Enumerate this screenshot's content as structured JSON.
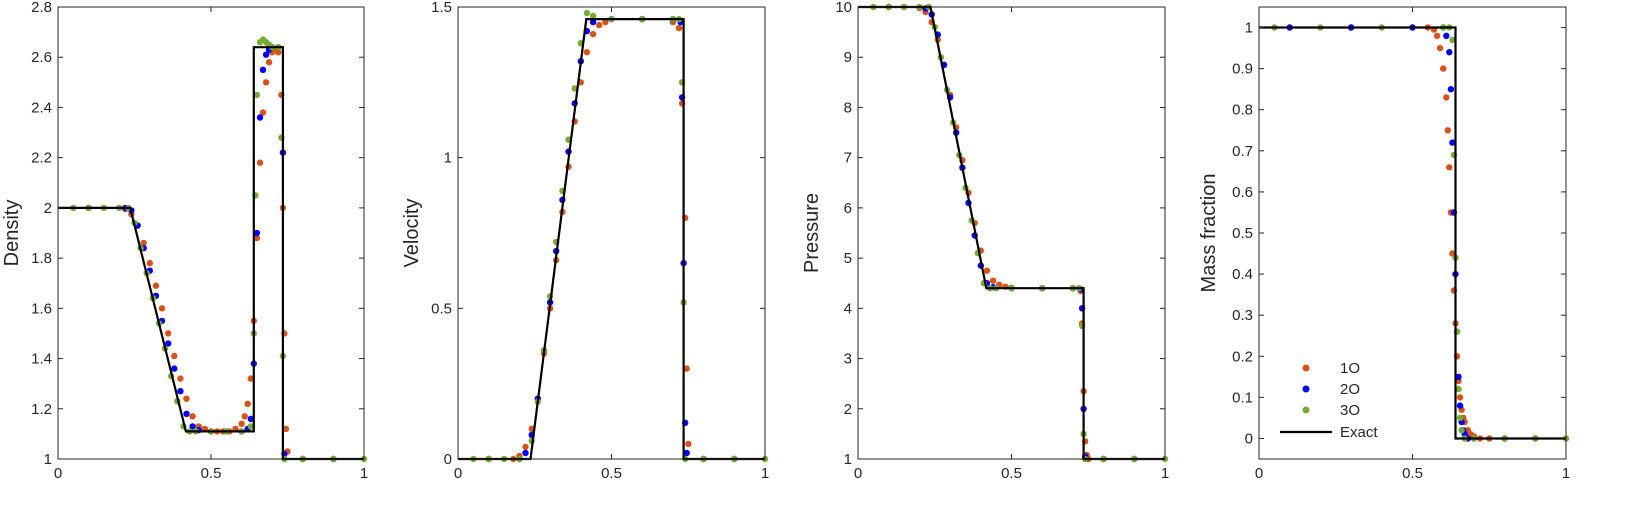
{
  "colors": {
    "1O": "#D95319",
    "2O": "#0000FF",
    "3O": "#77AC30",
    "Exact": "#000000",
    "axis": "#262626"
  },
  "chart_data": [
    {
      "type": "scatter",
      "ylabel": "Density",
      "xlim": [
        0,
        1
      ],
      "ylim": [
        1,
        2.8
      ],
      "xticks": [
        0,
        0.5,
        1
      ],
      "xtick_labels": [
        "0",
        "0.5",
        "1"
      ],
      "yticks": [
        1,
        1.2,
        1.4,
        1.6,
        1.8,
        2,
        2.2,
        2.4,
        2.6,
        2.8
      ],
      "ytick_labels": [
        "1",
        "1.2",
        "1.4",
        "1.6",
        "1.8",
        "2",
        "2.2",
        "2.4",
        "2.6",
        "2.8"
      ],
      "exact": {
        "name": "Exact",
        "x": [
          0,
          0.236,
          0.418,
          0.64,
          0.64,
          0.735,
          0.735,
          1
        ],
        "y": [
          2,
          2,
          1.11,
          1.11,
          2.64,
          2.64,
          1,
          1
        ]
      },
      "series": [
        {
          "name": "1O",
          "x": [
            0.1,
            0.22,
            0.24,
            0.26,
            0.28,
            0.3,
            0.32,
            0.34,
            0.36,
            0.38,
            0.4,
            0.42,
            0.44,
            0.46,
            0.48,
            0.5,
            0.52,
            0.54,
            0.56,
            0.58,
            0.6,
            0.61,
            0.62,
            0.63,
            0.64,
            0.65,
            0.66,
            0.67,
            0.68,
            0.69,
            0.7,
            0.71,
            0.72,
            0.73,
            0.735,
            0.74,
            0.745,
            0.75,
            0.8,
            0.9
          ],
          "y": [
            2,
            1.995,
            1.975,
            1.93,
            1.86,
            1.78,
            1.69,
            1.6,
            1.5,
            1.41,
            1.32,
            1.24,
            1.17,
            1.13,
            1.12,
            1.11,
            1.11,
            1.11,
            1.11,
            1.12,
            1.14,
            1.17,
            1.22,
            1.32,
            1.55,
            1.88,
            2.18,
            2.38,
            2.5,
            2.58,
            2.62,
            2.63,
            2.62,
            2.45,
            2.0,
            1.5,
            1.12,
            1.03,
            1.0,
            1.0
          ]
        },
        {
          "name": "2O",
          "x": [
            0.1,
            0.22,
            0.24,
            0.26,
            0.28,
            0.3,
            0.32,
            0.34,
            0.36,
            0.38,
            0.4,
            0.42,
            0.44,
            0.46,
            0.5,
            0.55,
            0.6,
            0.62,
            0.63,
            0.64,
            0.65,
            0.66,
            0.67,
            0.68,
            0.69,
            0.7,
            0.72,
            0.735,
            0.74,
            0.8,
            0.9
          ],
          "y": [
            2,
            2.0,
            1.99,
            1.93,
            1.84,
            1.75,
            1.65,
            1.55,
            1.46,
            1.36,
            1.27,
            1.18,
            1.13,
            1.115,
            1.11,
            1.11,
            1.11,
            1.12,
            1.16,
            1.38,
            1.9,
            2.36,
            2.55,
            2.61,
            2.63,
            2.64,
            2.64,
            2.22,
            1.02,
            1.0,
            1.0
          ]
        },
        {
          "name": "3O",
          "x": [
            0.05,
            0.1,
            0.15,
            0.2,
            0.23,
            0.25,
            0.27,
            0.29,
            0.31,
            0.33,
            0.35,
            0.37,
            0.39,
            0.41,
            0.43,
            0.45,
            0.5,
            0.55,
            0.6,
            0.63,
            0.64,
            0.645,
            0.65,
            0.66,
            0.67,
            0.68,
            0.69,
            0.7,
            0.72,
            0.73,
            0.735,
            0.74,
            0.8,
            0.9,
            1.0
          ],
          "y": [
            2,
            2,
            2,
            2,
            2,
            1.94,
            1.84,
            1.74,
            1.64,
            1.54,
            1.44,
            1.33,
            1.23,
            1.13,
            1.11,
            1.11,
            1.11,
            1.11,
            1.11,
            1.13,
            1.5,
            2.05,
            2.45,
            2.66,
            2.67,
            2.66,
            2.65,
            2.64,
            2.64,
            2.28,
            1.41,
            1.0,
            1.0,
            1.0,
            1.0
          ]
        }
      ]
    },
    {
      "type": "scatter",
      "ylabel": "Velocity",
      "xlim": [
        0,
        1
      ],
      "ylim": [
        0,
        1.5
      ],
      "xticks": [
        0,
        0.5,
        1
      ],
      "xtick_labels": [
        "0",
        "0.5",
        "1"
      ],
      "yticks": [
        0,
        0.5,
        1,
        1.5
      ],
      "ytick_labels": [
        "0",
        "0.5",
        "1",
        "1.5"
      ],
      "exact": {
        "name": "Exact",
        "x": [
          0,
          0.236,
          0.418,
          0.735,
          0.735,
          1
        ],
        "y": [
          0,
          0,
          1.46,
          1.46,
          0,
          0
        ]
      },
      "series": [
        {
          "name": "1O",
          "x": [
            0.1,
            0.18,
            0.2,
            0.22,
            0.24,
            0.26,
            0.28,
            0.3,
            0.32,
            0.34,
            0.36,
            0.38,
            0.4,
            0.42,
            0.44,
            0.46,
            0.48,
            0.5,
            0.6,
            0.7,
            0.72,
            0.73,
            0.74,
            0.745,
            0.75,
            0.8,
            0.9
          ],
          "y": [
            0,
            0.0,
            0.01,
            0.04,
            0.1,
            0.2,
            0.35,
            0.5,
            0.66,
            0.82,
            0.97,
            1.12,
            1.25,
            1.35,
            1.41,
            1.44,
            1.45,
            1.46,
            1.46,
            1.45,
            1.43,
            1.18,
            0.8,
            0.3,
            0.05,
            0.0,
            0.0
          ]
        },
        {
          "name": "2O",
          "x": [
            0.1,
            0.2,
            0.22,
            0.24,
            0.26,
            0.28,
            0.3,
            0.32,
            0.34,
            0.36,
            0.38,
            0.4,
            0.42,
            0.44,
            0.5,
            0.6,
            0.7,
            0.725,
            0.73,
            0.735,
            0.74,
            0.745,
            0.8,
            0.9
          ],
          "y": [
            0,
            0.0,
            0.02,
            0.08,
            0.2,
            0.36,
            0.52,
            0.69,
            0.86,
            1.02,
            1.18,
            1.32,
            1.42,
            1.45,
            1.46,
            1.46,
            1.46,
            1.45,
            1.2,
            0.65,
            0.12,
            0.02,
            0.0,
            0.0
          ]
        },
        {
          "name": "3O",
          "x": [
            0.05,
            0.1,
            0.15,
            0.2,
            0.24,
            0.26,
            0.28,
            0.3,
            0.32,
            0.34,
            0.36,
            0.38,
            0.4,
            0.42,
            0.44,
            0.5,
            0.6,
            0.7,
            0.72,
            0.73,
            0.735,
            0.74,
            0.8,
            0.9,
            1.0
          ],
          "y": [
            0,
            0,
            0,
            0,
            0.06,
            0.19,
            0.36,
            0.54,
            0.72,
            0.89,
            1.06,
            1.23,
            1.38,
            1.48,
            1.47,
            1.46,
            1.46,
            1.46,
            1.46,
            1.25,
            0.52,
            0.0,
            0.0,
            0.0,
            0.0
          ]
        }
      ]
    },
    {
      "type": "scatter",
      "ylabel": "Pressure",
      "xlim": [
        0,
        1
      ],
      "ylim": [
        1,
        10
      ],
      "xticks": [
        0,
        0.5,
        1
      ],
      "xtick_labels": [
        "0",
        "0.5",
        "1"
      ],
      "yticks": [
        1,
        2,
        3,
        4,
        5,
        6,
        7,
        8,
        9,
        10
      ],
      "ytick_labels": [
        "1",
        "2",
        "3",
        "4",
        "5",
        "6",
        "7",
        "8",
        "9",
        "10"
      ],
      "exact": {
        "name": "Exact",
        "x": [
          0,
          0.236,
          0.418,
          0.735,
          0.735,
          1
        ],
        "y": [
          10,
          10,
          4.4,
          4.4,
          1,
          1
        ]
      },
      "series": [
        {
          "name": "1O",
          "x": [
            0.1,
            0.2,
            0.22,
            0.24,
            0.26,
            0.28,
            0.3,
            0.32,
            0.34,
            0.36,
            0.38,
            0.4,
            0.42,
            0.44,
            0.46,
            0.48,
            0.5,
            0.6,
            0.7,
            0.725,
            0.73,
            0.735,
            0.74,
            0.745,
            0.75,
            0.8,
            0.9
          ],
          "y": [
            10,
            9.98,
            9.9,
            9.7,
            9.35,
            8.85,
            8.25,
            7.6,
            6.95,
            6.3,
            5.7,
            5.15,
            4.75,
            4.55,
            4.47,
            4.43,
            4.41,
            4.4,
            4.4,
            4.35,
            3.7,
            2.35,
            1.35,
            1.08,
            1.0,
            1.0,
            1.0
          ]
        },
        {
          "name": "2O",
          "x": [
            0.1,
            0.22,
            0.24,
            0.26,
            0.28,
            0.3,
            0.32,
            0.34,
            0.36,
            0.38,
            0.4,
            0.42,
            0.44,
            0.5,
            0.6,
            0.7,
            0.725,
            0.73,
            0.735,
            0.74,
            0.8,
            0.9
          ],
          "y": [
            10,
            9.97,
            9.85,
            9.45,
            8.85,
            8.2,
            7.5,
            6.8,
            6.1,
            5.45,
            4.85,
            4.5,
            4.42,
            4.4,
            4.4,
            4.4,
            4.38,
            4.0,
            2.0,
            1.05,
            1.0,
            1.0
          ]
        },
        {
          "name": "3O",
          "x": [
            0.05,
            0.1,
            0.15,
            0.2,
            0.23,
            0.25,
            0.27,
            0.29,
            0.31,
            0.33,
            0.35,
            0.37,
            0.39,
            0.41,
            0.43,
            0.45,
            0.5,
            0.6,
            0.7,
            0.72,
            0.73,
            0.735,
            0.74,
            0.8,
            0.9,
            1.0
          ],
          "y": [
            10,
            10,
            10,
            10,
            10,
            9.6,
            9.0,
            8.35,
            7.7,
            7.05,
            6.4,
            5.75,
            5.1,
            4.5,
            4.4,
            4.4,
            4.4,
            4.4,
            4.4,
            4.4,
            3.65,
            1.5,
            1.0,
            1.0,
            1.0,
            1.0
          ]
        }
      ]
    },
    {
      "type": "scatter",
      "ylabel": "Mass fraction",
      "xlim": [
        0,
        1
      ],
      "ylim": [
        -0.05,
        1.05
      ],
      "xticks": [
        0,
        0.5,
        1
      ],
      "xtick_labels": [
        "0",
        "0.5",
        "1"
      ],
      "yticks": [
        0,
        0.1,
        0.2,
        0.3,
        0.4,
        0.5,
        0.6,
        0.7,
        0.8,
        0.9,
        1
      ],
      "ytick_labels": [
        "0",
        "0.1",
        "0.2",
        "0.3",
        "0.4",
        "0.5",
        "0.6",
        "0.7",
        "0.8",
        "0.9",
        "1"
      ],
      "legend": {
        "placement": "bottom-left",
        "entries": [
          "1O",
          "2O",
          "3O",
          "Exact"
        ]
      },
      "exact": {
        "name": "Exact",
        "x": [
          0,
          0.64,
          0.64,
          1
        ],
        "y": [
          1,
          1,
          0,
          0
        ]
      },
      "series": [
        {
          "name": "1O",
          "x": [
            0.1,
            0.3,
            0.5,
            0.55,
            0.57,
            0.58,
            0.59,
            0.6,
            0.61,
            0.615,
            0.62,
            0.625,
            0.63,
            0.635,
            0.64,
            0.645,
            0.65,
            0.655,
            0.66,
            0.665,
            0.67,
            0.68,
            0.69,
            0.7,
            0.72,
            0.75,
            0.8,
            0.9
          ],
          "y": [
            1,
            1,
            1,
            1,
            0.995,
            0.98,
            0.95,
            0.9,
            0.83,
            0.75,
            0.66,
            0.55,
            0.45,
            0.36,
            0.28,
            0.2,
            0.14,
            0.1,
            0.07,
            0.05,
            0.04,
            0.02,
            0.01,
            0.005,
            0.0,
            0.0,
            0.0,
            0.0
          ]
        },
        {
          "name": "2O",
          "x": [
            0.1,
            0.3,
            0.5,
            0.6,
            0.61,
            0.62,
            0.625,
            0.63,
            0.635,
            0.64,
            0.645,
            0.65,
            0.655,
            0.66,
            0.665,
            0.67,
            0.68,
            0.7,
            0.8,
            0.9
          ],
          "y": [
            1,
            1,
            1,
            1,
            0.98,
            0.94,
            0.85,
            0.72,
            0.55,
            0.4,
            0.26,
            0.15,
            0.08,
            0.04,
            0.02,
            0.01,
            0.0,
            0.0,
            0.0,
            0.0
          ]
        },
        {
          "name": "3O",
          "x": [
            0.05,
            0.2,
            0.4,
            0.6,
            0.62,
            0.63,
            0.635,
            0.64,
            0.645,
            0.65,
            0.655,
            0.66,
            0.67,
            0.7,
            0.8,
            0.9,
            1.0
          ],
          "y": [
            1,
            1,
            1,
            1,
            1.0,
            0.97,
            0.69,
            0.44,
            0.26,
            0.12,
            0.05,
            0.02,
            0.0,
            0.0,
            0.0,
            0.0,
            0.0
          ]
        }
      ]
    }
  ]
}
